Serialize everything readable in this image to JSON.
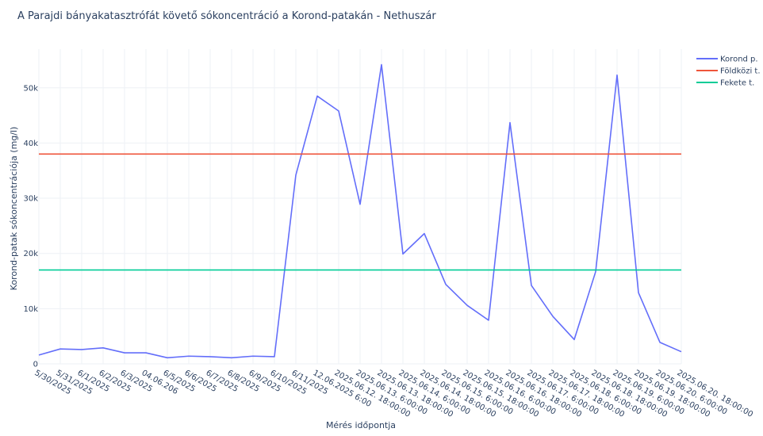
{
  "chart_data": {
    "type": "line",
    "title": "A Parajdi bányakatasztrófát követő sókoncentráció a Korond-patakán - Nethuszár",
    "xlabel": "Mérés időpontja",
    "ylabel": "Korond-patak sókoncentrációja (mg/l)",
    "categories": [
      "5/30/2025",
      "5/31/2025",
      "6/1/2025",
      "6/2/2025",
      "6/3/2025",
      "04.06.206",
      "6/5/2025",
      "6/6/2025",
      "6/7/2025",
      "6/8/2025",
      "6/9/2025",
      "6/10/2025",
      "6/11/2025",
      "12.06.2025 6:00",
      "2025.06.12. 18:00:00",
      "2025.06.13. 6:00:00",
      "2025.06.13. 18:00:00",
      "2025.06.14. 6:00:00",
      "2025.06.14. 18:00:00",
      "2025.06.15. 6:00:00",
      "2025.06.15. 18:00:00",
      "2025.06.16. 6:00:00",
      "2025.06.16. 18:00:00",
      "2025.06.17. 6:00:00",
      "2025.06.17. 18:00:00",
      "2025.06.18. 6:00:00",
      "2025.06.18. 18:00:00",
      "2025.06.19. 6:00:00",
      "2025.06.19. 18:00:00",
      "2025.06.20. 6:00:00",
      "2025.06.20. 18:00:00"
    ],
    "ylim": [
      0,
      57000
    ],
    "yticks": [
      0,
      10000,
      20000,
      30000,
      40000,
      50000
    ],
    "ytick_labels": [
      "0",
      "10k",
      "20k",
      "30k",
      "40k",
      "50k"
    ],
    "grid": true,
    "legend_position": "top-right",
    "series": [
      {
        "name": "Korond p.",
        "color": "#636efa",
        "values": [
          1600,
          2700,
          2600,
          2900,
          2000,
          2000,
          1100,
          1400,
          1300,
          1100,
          1400,
          1300,
          34200,
          48500,
          45800,
          28900,
          54200,
          19900,
          23600,
          14400,
          10600,
          7900,
          43700,
          14200,
          8600,
          4400,
          16700,
          52300,
          12900,
          3900,
          2200
        ]
      },
      {
        "name": "Földközi t.",
        "color": "#ef553b",
        "values": [
          38000,
          38000,
          38000,
          38000,
          38000,
          38000,
          38000,
          38000,
          38000,
          38000,
          38000,
          38000,
          38000,
          38000,
          38000,
          38000,
          38000,
          38000,
          38000,
          38000,
          38000,
          38000,
          38000,
          38000,
          38000,
          38000,
          38000,
          38000,
          38000,
          38000,
          38000
        ]
      },
      {
        "name": "Fekete t.",
        "color": "#00cc96",
        "values": [
          17000,
          17000,
          17000,
          17000,
          17000,
          17000,
          17000,
          17000,
          17000,
          17000,
          17000,
          17000,
          17000,
          17000,
          17000,
          17000,
          17000,
          17000,
          17000,
          17000,
          17000,
          17000,
          17000,
          17000,
          17000,
          17000,
          17000,
          17000,
          17000,
          17000,
          17000
        ]
      }
    ]
  }
}
